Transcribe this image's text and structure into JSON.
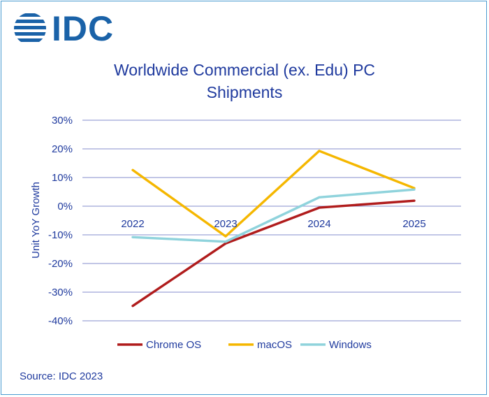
{
  "logo": {
    "text": "IDC",
    "brand_color": "#1a62a8"
  },
  "title_lines": [
    "Worldwide Commercial (ex. Edu) PC",
    "Shipments"
  ],
  "source": "Source: IDC 2023",
  "chart_data": {
    "type": "line",
    "title": "Worldwide Commercial (ex. Edu) PC Shipments",
    "xlabel": "",
    "ylabel": "Unit YoY Growth",
    "categories": [
      "2022",
      "2023",
      "2024",
      "2025"
    ],
    "ylim": [
      -40,
      30
    ],
    "yticks": [
      30,
      20,
      10,
      0,
      -10,
      -20,
      -30,
      -40
    ],
    "ytick_labels": [
      "30%",
      "20%",
      "10%",
      "0%",
      "-10%",
      "-20%",
      "-30%",
      "-40%"
    ],
    "grid": true,
    "legend_position": "bottom",
    "series": [
      {
        "name": "Chrome OS",
        "color": "#b01c1c",
        "values": [
          -34.8,
          -13.0,
          -0.5,
          1.9
        ]
      },
      {
        "name": "macOS",
        "color": "#f5b700",
        "values": [
          12.6,
          -10.5,
          19.3,
          6.3
        ]
      },
      {
        "name": "Windows",
        "color": "#8fd3dc",
        "values": [
          -10.8,
          -12.4,
          3.1,
          5.8
        ]
      }
    ],
    "text_color": "#1f3a9e",
    "grid_color": "#9ea3d8"
  }
}
